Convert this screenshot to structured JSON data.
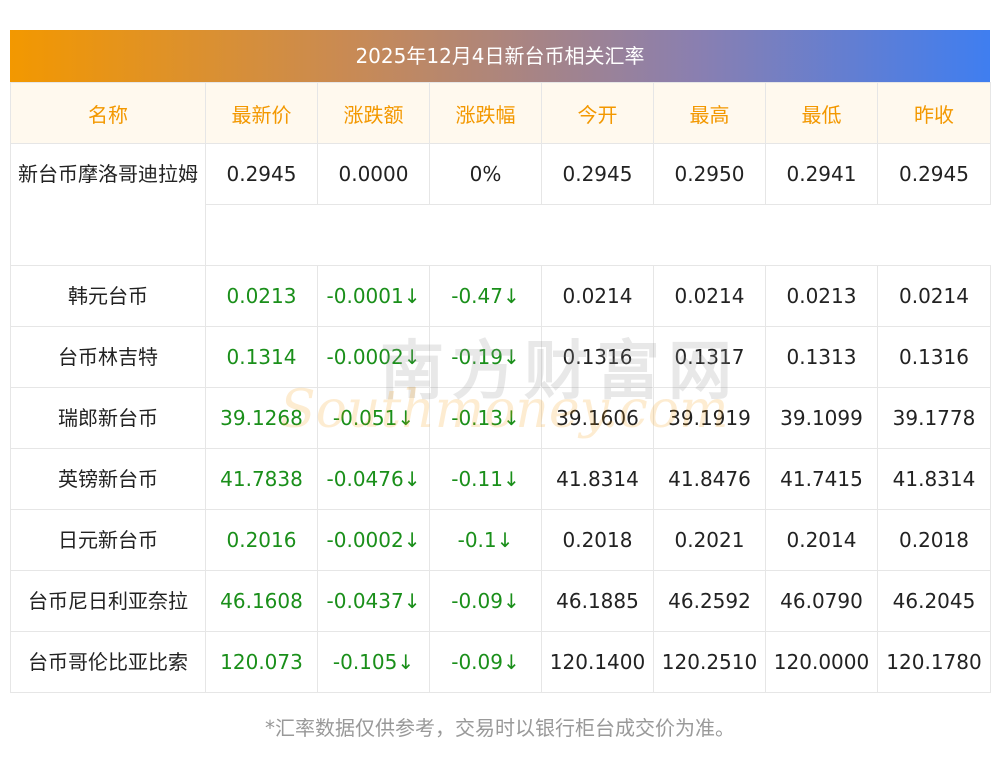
{
  "title": "2025年12月4日新台币相关汇率",
  "headers": [
    "名称",
    "最新价",
    "涨跌额",
    "涨跌幅",
    "今开",
    "最高",
    "最低",
    "昨收"
  ],
  "rows": [
    {
      "name": "新台币摩洛哥迪拉姆",
      "latest": "0.2945",
      "change": "0.0000",
      "change_pct": "0%",
      "open": "0.2945",
      "high": "0.2950",
      "low": "0.2941",
      "prev_close": "0.2945",
      "down": false
    },
    {
      "name": "韩元台币",
      "latest": "0.0213",
      "change": "-0.0001↓",
      "change_pct": "-0.47↓",
      "open": "0.0214",
      "high": "0.0214",
      "low": "0.0213",
      "prev_close": "0.0214",
      "down": true
    },
    {
      "name": "台币林吉特",
      "latest": "0.1314",
      "change": "-0.0002↓",
      "change_pct": "-0.19↓",
      "open": "0.1316",
      "high": "0.1317",
      "low": "0.1313",
      "prev_close": "0.1316",
      "down": true
    },
    {
      "name": "瑞郎新台币",
      "latest": "39.1268",
      "change": "-0.051↓",
      "change_pct": "-0.13↓",
      "open": "39.1606",
      "high": "39.1919",
      "low": "39.1099",
      "prev_close": "39.1778",
      "down": true
    },
    {
      "name": "英镑新台币",
      "latest": "41.7838",
      "change": "-0.0476↓",
      "change_pct": "-0.11↓",
      "open": "41.8314",
      "high": "41.8476",
      "low": "41.7415",
      "prev_close": "41.8314",
      "down": true
    },
    {
      "name": "日元新台币",
      "latest": "0.2016",
      "change": "-0.0002↓",
      "change_pct": "-0.1↓",
      "open": "0.2018",
      "high": "0.2021",
      "low": "0.2014",
      "prev_close": "0.2018",
      "down": true
    },
    {
      "name": "台币尼日利亚奈拉",
      "latest": "46.1608",
      "change": "-0.0437↓",
      "change_pct": "-0.09↓",
      "open": "46.1885",
      "high": "46.2592",
      "low": "46.0790",
      "prev_close": "46.2045",
      "down": true
    },
    {
      "name": "台币哥伦比亚比索",
      "latest": "120.073",
      "change": "-0.105↓",
      "change_pct": "-0.09↓",
      "open": "120.1400",
      "high": "120.2510",
      "low": "120.0000",
      "prev_close": "120.1780",
      "down": true
    }
  ],
  "watermark": {
    "cn": "南方财富网",
    "en": "Southmoney.com"
  },
  "footnote": "*汇率数据仅供参考，交易时以银行柜台成交价为准。",
  "colors": {
    "header_text": "#f39800",
    "header_bg": "#fff9ee",
    "down": "#1a8f1a",
    "title_gradient_start": "#f39800",
    "title_gradient_end": "#3f7ef0"
  }
}
